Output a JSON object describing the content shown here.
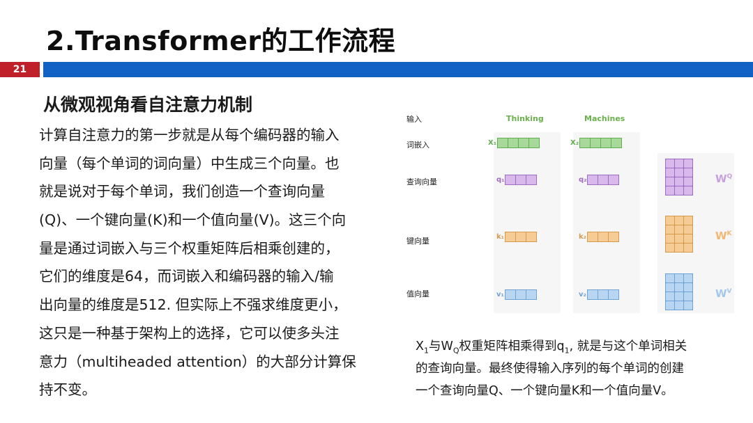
{
  "slide": {
    "title": "2.Transformer的工作流程",
    "page_number": "21",
    "subtitle": "从微观视角看自注意力机制",
    "colors": {
      "accent_red": "#c0202a",
      "accent_blue": "#1261c4"
    }
  },
  "body": {
    "lines": [
      "计算自注意力的第一步就是从每个编码器的输入",
      "向量（每个单词的词向量）中生成三个向量。也",
      "就是说对于每个单词，我们创造一个查询向量",
      "(Q)、一个键向量(K)和一个值向量(V)。这三个向",
      "量是通过词嵌入与三个权重矩阵后相乘创建的，",
      "它们的维度是64，而词嵌入和编码器的输入/输",
      "出向量的维度是512. 但实际上不强求维度更小，",
      "这只是一种基于架构上的选择，它可以使多头注",
      "意力（multiheaded attention）的大部分计算保",
      "持不变。"
    ]
  },
  "figure": {
    "row_labels": {
      "input": "输入",
      "embedding": "词嵌入",
      "query": "查询向量",
      "key": "键向量",
      "value": "值向量"
    },
    "columns": [
      "Thinking",
      "Machines"
    ],
    "symbols": {
      "x1": "X₁",
      "x2": "X₂",
      "q1": "q₁",
      "q2": "q₂",
      "k1": "k₁",
      "k2": "k₂",
      "v1": "v₁",
      "v2": "v₂"
    },
    "weights": {
      "wq": {
        "base": "W",
        "sup": "Q"
      },
      "wk": {
        "base": "W",
        "sup": "K"
      },
      "wv": {
        "base": "W",
        "sup": "V"
      }
    },
    "colors": {
      "embedding_fill": "#a8d99a",
      "embedding_border": "#5fae4e",
      "query_fill": "#d9b8ec",
      "query_border": "#9f6cc4",
      "key_fill": "#f6cc96",
      "key_border": "#d69a4c",
      "value_fill": "#b8d6f2",
      "value_border": "#6fa3d6"
    }
  },
  "caption": {
    "line1": {
      "x": "X",
      "x_sub": "1",
      "t1": "与W",
      "w_sub": "Q",
      "t2": "权重矩阵相乘得到q",
      "q_sub": "1",
      "t3": ", 就是与这个单词相关"
    },
    "line2": "的查询向量。最终使得输入序列的每个单词的创建",
    "line3": "一个查询向量Q、一个键向量K和一个值向量V。"
  }
}
